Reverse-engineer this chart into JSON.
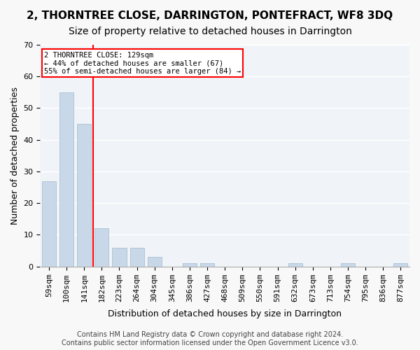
{
  "title": "2, THORNTREE CLOSE, DARRINGTON, PONTEFRACT, WF8 3DQ",
  "subtitle": "Size of property relative to detached houses in Darrington",
  "xlabel": "Distribution of detached houses by size in Darrington",
  "ylabel": "Number of detached properties",
  "categories": [
    "59sqm",
    "100sqm",
    "141sqm",
    "182sqm",
    "223sqm",
    "264sqm",
    "304sqm",
    "345sqm",
    "386sqm",
    "427sqm",
    "468sqm",
    "509sqm",
    "550sqm",
    "591sqm",
    "632sqm",
    "673sqm",
    "713sqm",
    "754sqm",
    "795sqm",
    "836sqm",
    "877sqm"
  ],
  "values": [
    27,
    55,
    45,
    12,
    6,
    6,
    3,
    0,
    1,
    1,
    0,
    0,
    0,
    0,
    1,
    0,
    0,
    1,
    0,
    0,
    1
  ],
  "bar_color": "#c8d8e8",
  "bar_edge_color": "#a0b8cc",
  "ref_line_x": 2,
  "ref_line_color": "red",
  "annotation_box_text": "2 THORNTREE CLOSE: 129sqm\n← 44% of detached houses are smaller (67)\n55% of semi-detached houses are larger (84) →",
  "annotation_box_color": "red",
  "ylim": [
    0,
    70
  ],
  "yticks": [
    0,
    10,
    20,
    30,
    40,
    50,
    60,
    70
  ],
  "footer": "Contains HM Land Registry data © Crown copyright and database right 2024.\nContains public sector information licensed under the Open Government Licence v3.0.",
  "background_color": "#f0f4f8",
  "grid_color": "#ffffff",
  "title_fontsize": 11,
  "subtitle_fontsize": 10,
  "axis_label_fontsize": 9,
  "tick_fontsize": 8,
  "footer_fontsize": 7
}
